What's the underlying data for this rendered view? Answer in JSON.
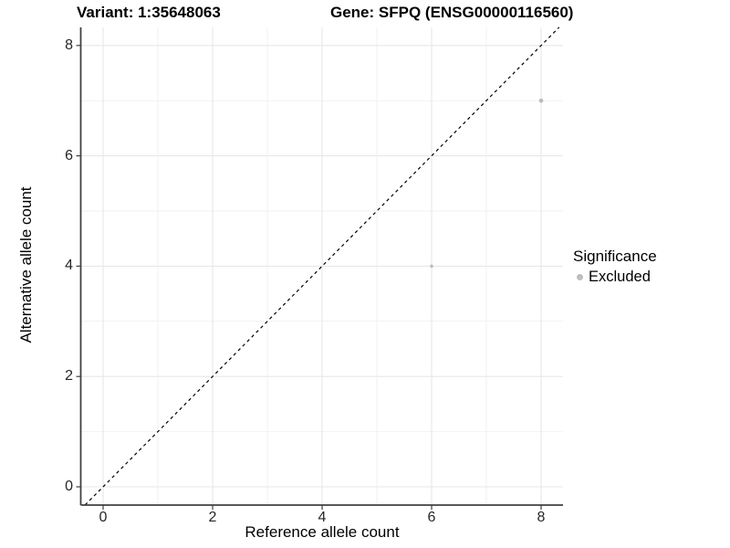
{
  "figure": {
    "title_left": "Variant: 1:35648063",
    "title_right": "Gene: SFPQ (ENSG00000116560)"
  },
  "chart_data": {
    "type": "scatter",
    "title_left": "Variant: 1:35648063",
    "title_right": "Gene: SFPQ (ENSG00000116560)",
    "xlabel": "Reference allele count",
    "ylabel": "Alternative allele count",
    "x_ticks": [
      0,
      2,
      4,
      6,
      8
    ],
    "y_ticks": [
      0,
      2,
      4,
      6,
      8
    ],
    "x_minor_ticks": [
      1,
      3,
      5,
      7
    ],
    "y_minor_ticks": [
      1,
      3,
      5,
      7
    ],
    "xlim": [
      -0.42,
      8.4
    ],
    "ylim": [
      -0.33,
      8.33
    ],
    "grid": true,
    "series": [
      {
        "name": "Excluded",
        "color": "#bcbcbc",
        "points": [
          {
            "x": 6,
            "y": 4,
            "r": 1.8
          },
          {
            "x": 8,
            "y": 7,
            "r": 2.3
          }
        ]
      }
    ],
    "reference_line": {
      "type": "identity",
      "slope": 1,
      "intercept": 0,
      "style": "dashed",
      "color": "#000000"
    },
    "legend": {
      "position": "right",
      "title": "Significance",
      "items": [
        {
          "label": "Excluded",
          "color": "#bebebe"
        }
      ]
    },
    "colors": {
      "background": "#ffffff",
      "panel_background": "#ffffff",
      "grid_major": "#e7e7e7",
      "grid_minor": "#f2f2f2",
      "axis_line": "#404040",
      "tick_mark": "#404040",
      "tick_text": "#262626",
      "point": "#bcbcbc"
    }
  }
}
